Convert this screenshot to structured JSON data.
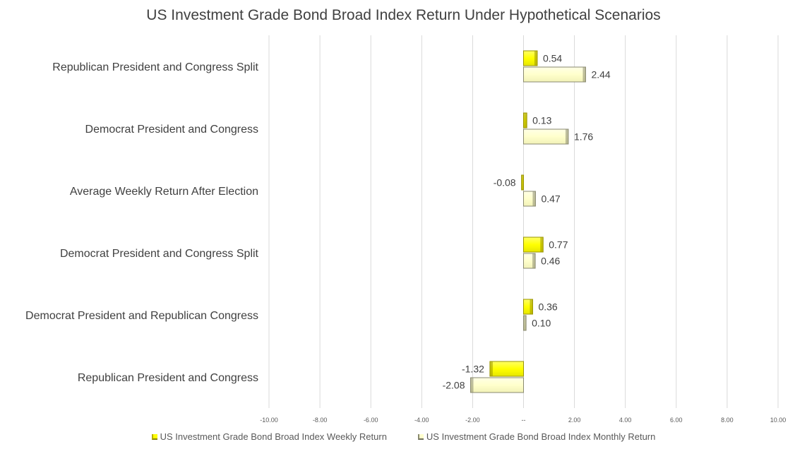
{
  "chart_data": {
    "type": "bar",
    "orientation": "horizontal",
    "title": "US Investment Grade Bond Broad Index Return Under Hypothetical Scenarios",
    "categories": [
      "Republican President and Congress Split",
      "Democrat President and Congress",
      "Average Weekly Return After Election",
      "Democrat President and Congress Split",
      "Democrat President and Republican Congress",
      "Republican President and Congress"
    ],
    "series": [
      {
        "name": "US Investment Grade Bond Broad Index Weekly Return",
        "color": "#ffff00",
        "values": [
          0.54,
          0.13,
          -0.08,
          0.77,
          0.36,
          -1.32
        ],
        "labels": [
          "0.54",
          "0.13",
          "-0.08",
          "0.77",
          "0.36",
          "-1.32"
        ]
      },
      {
        "name": "US Investment Grade Bond Broad Index Monthly Return",
        "color": "#ffffcc",
        "values": [
          2.44,
          1.76,
          0.47,
          0.46,
          0.1,
          -2.08
        ],
        "labels": [
          "2.44",
          "1.76",
          "0.47",
          "0.46",
          "0.10",
          "-2.08"
        ]
      }
    ],
    "xlim": [
      -10,
      10
    ],
    "xticks": [
      -10,
      -8,
      -6,
      -4,
      -2,
      0,
      2,
      4,
      6,
      8,
      10
    ],
    "xtick_labels": [
      "-10.00",
      "-8.00",
      "-6.00",
      "-4.00",
      "-2.00",
      "--",
      "2.00",
      "4.00",
      "6.00",
      "8.00",
      "10.00"
    ],
    "grid": "vertical",
    "legend": "bottom"
  }
}
